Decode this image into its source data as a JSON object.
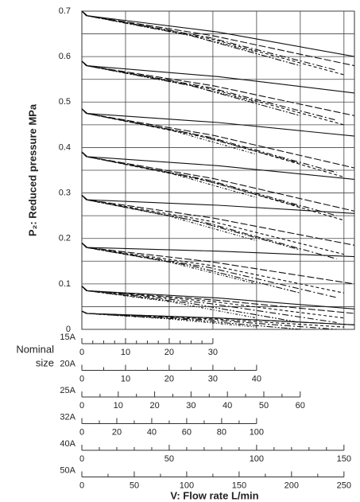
{
  "chart_data": {
    "type": "line",
    "ylabel": "P₂: Reduced pressure MPa",
    "ylim": [
      0,
      0.7
    ],
    "yticks": [
      0,
      0.1,
      0.2,
      0.3,
      0.4,
      0.5,
      0.6,
      0.7
    ],
    "ygrid": [
      0.05,
      0.15,
      0.25,
      0.35,
      0.45,
      0.55,
      0.65
    ],
    "xgrid": [
      10,
      20,
      30,
      40,
      50,
      60
    ],
    "size_label": [
      "Nominal",
      "size"
    ],
    "xlabel": "V: Flow rate L/min",
    "flow_axes": [
      {
        "label": "15A",
        "xlim": [
          0,
          62.4
        ],
        "xticks": [
          0,
          10,
          20,
          30
        ],
        "minor_xticks": [
          2.5,
          5,
          7.5,
          12.5,
          15,
          17.5,
          22.5,
          25,
          27.5
        ],
        "dash": "3 2 1 2 1 2",
        "color": "#111",
        "x": [
          0,
          1,
          20,
          40
        ],
        "series": [
          [
            0.7,
            0.69,
            0.658,
            0.61
          ],
          [
            0.59,
            0.58,
            0.548,
            0.5
          ],
          [
            0.485,
            0.475,
            0.439,
            0.385
          ],
          [
            0.39,
            0.38,
            0.344,
            0.29
          ],
          [
            0.295,
            0.285,
            0.249,
            0.195
          ],
          [
            0.19,
            0.18,
            0.148,
            0.1
          ],
          [
            0.095,
            0.085,
            0.061,
            0.025
          ],
          [
            0.04,
            0.035,
            0.023,
            0.005
          ]
        ]
      },
      {
        "label": "20A",
        "xlim": [
          0,
          62.4
        ],
        "xticks": [
          0,
          10,
          20,
          30,
          40
        ],
        "minor_xticks": [
          5,
          15,
          25,
          35
        ],
        "dash": "8 2 2 2 2 2",
        "color": "#111",
        "x": [
          0,
          1,
          25,
          50
        ],
        "series": [
          [
            0.7,
            0.69,
            0.646,
            0.58
          ],
          [
            0.59,
            0.58,
            0.536,
            0.47
          ],
          [
            0.485,
            0.475,
            0.431,
            0.365
          ],
          [
            0.39,
            0.38,
            0.336,
            0.27
          ],
          [
            0.295,
            0.285,
            0.241,
            0.175
          ],
          [
            0.19,
            0.18,
            0.14,
            0.08
          ],
          [
            0.095,
            0.085,
            0.057,
            0.015
          ],
          [
            0.04,
            0.035,
            0.021,
            0
          ]
        ]
      },
      {
        "label": "25A",
        "xlim": [
          0,
          74.9
        ],
        "xticks": [
          0,
          10,
          20,
          30,
          40,
          50,
          60
        ],
        "minor_xticks": [
          5,
          15,
          25,
          35,
          45,
          55
        ],
        "dash": "8 3 2 3",
        "color": "#111",
        "x": [
          0,
          1.5,
          35,
          70
        ],
        "series": [
          [
            0.7,
            0.69,
            0.642,
            0.57
          ],
          [
            0.59,
            0.58,
            0.532,
            0.46
          ],
          [
            0.485,
            0.475,
            0.423,
            0.345
          ],
          [
            0.39,
            0.38,
            0.328,
            0.25
          ],
          [
            0.295,
            0.285,
            0.233,
            0.155
          ],
          [
            0.19,
            0.18,
            0.136,
            0.07
          ],
          [
            0.095,
            0.085,
            0.057,
            0.015
          ],
          [
            0.04,
            0.035,
            0.021,
            0
          ]
        ]
      },
      {
        "label": "32A",
        "xlim": [
          0,
          156
        ],
        "xticks": [
          0,
          20,
          40,
          60,
          80,
          100
        ],
        "minor_xticks": [
          10,
          30,
          50,
          70,
          90
        ],
        "dash": "4 3",
        "color": "#111",
        "x": [
          0,
          3,
          75,
          150
        ],
        "series": [
          [
            0.7,
            0.69,
            0.638,
            0.56
          ],
          [
            0.59,
            0.58,
            0.528,
            0.45
          ],
          [
            0.485,
            0.475,
            0.419,
            0.335
          ],
          [
            0.39,
            0.38,
            0.324,
            0.24
          ],
          [
            0.295,
            0.285,
            0.237,
            0.165
          ],
          [
            0.19,
            0.18,
            0.14,
            0.08
          ],
          [
            0.095,
            0.085,
            0.061,
            0.025
          ],
          [
            0.04,
            0.035,
            0.023,
            0.005
          ]
        ]
      },
      {
        "label": "40A",
        "xlim": [
          0,
          156
        ],
        "xticks": [
          0,
          50,
          100,
          150
        ],
        "minor_xticks": [
          10,
          20,
          30,
          40,
          60,
          70,
          80,
          90,
          110,
          120,
          130,
          140
        ],
        "dash": "9 3",
        "color": "#111",
        "x": [
          0,
          3,
          75,
          156
        ],
        "series": [
          [
            0.7,
            0.69,
            0.646,
            0.58
          ],
          [
            0.59,
            0.58,
            0.536,
            0.47
          ],
          [
            0.485,
            0.475,
            0.427,
            0.355
          ],
          [
            0.39,
            0.38,
            0.332,
            0.26
          ],
          [
            0.295,
            0.285,
            0.245,
            0.185
          ],
          [
            0.19,
            0.18,
            0.148,
            0.1
          ],
          [
            0.095,
            0.085,
            0.065,
            0.035
          ],
          [
            0.04,
            0.035,
            0.025,
            0.01
          ]
        ]
      },
      {
        "label": "50A",
        "xlim": [
          0,
          260
        ],
        "xticks": [
          0,
          50,
          100,
          150,
          200,
          250
        ],
        "minor_xticks": [
          25,
          75,
          125,
          175,
          225
        ],
        "dash": "solid",
        "color": "#111",
        "x": [
          0,
          5,
          130,
          260
        ],
        "series": [
          [
            0.7,
            0.69,
            0.654,
            0.6
          ],
          [
            0.59,
            0.58,
            0.556,
            0.52
          ],
          [
            0.485,
            0.475,
            0.455,
            0.425
          ],
          [
            0.39,
            0.38,
            0.36,
            0.33
          ],
          [
            0.295,
            0.285,
            0.273,
            0.255
          ],
          [
            0.19,
            0.18,
            0.172,
            0.16
          ],
          [
            0.095,
            0.085,
            0.069,
            0.045
          ],
          [
            0.04,
            0.035,
            0.025,
            0.01
          ]
        ]
      }
    ]
  }
}
